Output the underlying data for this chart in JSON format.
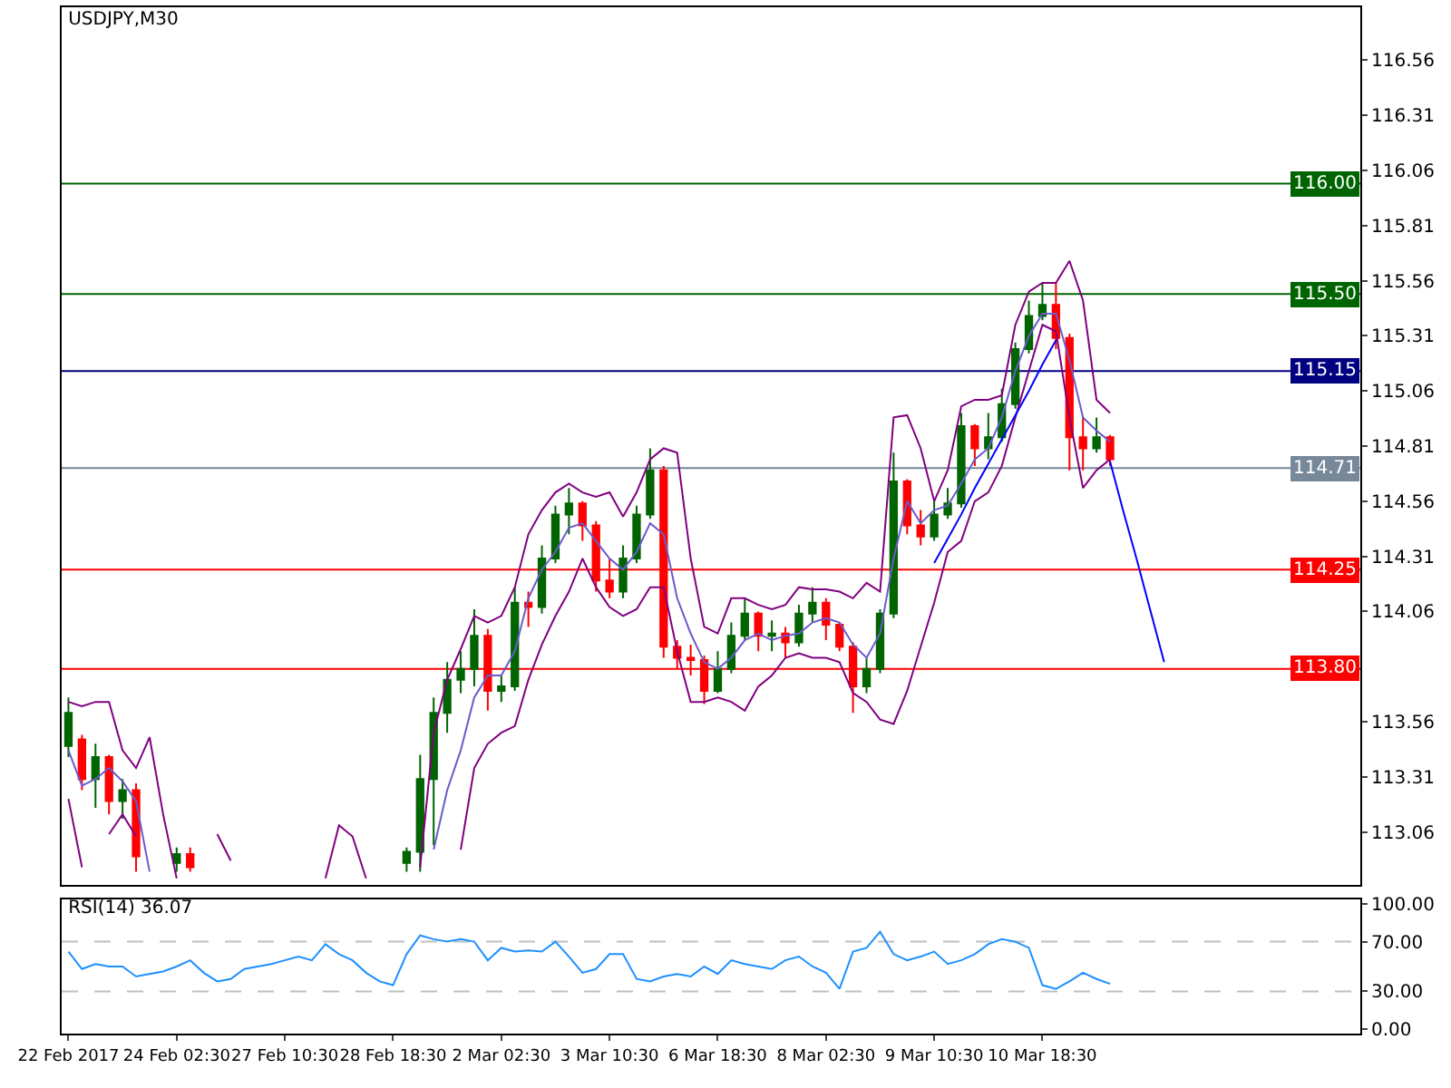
{
  "chart_data": [
    {
      "type": "candlestick",
      "title": "USDJPY,M30",
      "categories": [
        null,
        null,
        null,
        null,
        null,
        null,
        null,
        null,
        null,
        null,
        null,
        null,
        null,
        null,
        null,
        null,
        null,
        null,
        null,
        null,
        null,
        null,
        null,
        null,
        null,
        null,
        null,
        null,
        null,
        null,
        null,
        null,
        null,
        null,
        null,
        null,
        null,
        null,
        null,
        null,
        null,
        null,
        null,
        null,
        null,
        null,
        null,
        null,
        null,
        null,
        null,
        null,
        null,
        null,
        null,
        null,
        null,
        null,
        null,
        null,
        null,
        null,
        null,
        null,
        null,
        null,
        null,
        null,
        null,
        null,
        null,
        null,
        null,
        null,
        null,
        null,
        null,
        null,
        null,
        null,
        null,
        null,
        null,
        null,
        null,
        null,
        null,
        null,
        null,
        null,
        null,
        null,
        null,
        null,
        null,
        null
      ],
      "ohlc": [
        [
          113.45,
          113.67,
          113.4,
          113.6
        ],
        [
          113.48,
          113.5,
          113.25,
          113.3
        ],
        [
          113.3,
          113.46,
          113.17,
          113.4
        ],
        [
          113.4,
          113.41,
          113.14,
          113.2
        ],
        [
          113.2,
          113.3,
          113.12,
          113.25
        ],
        [
          113.25,
          113.28,
          112.88,
          112.95
        ],
        null,
        null,
        [
          112.92,
          112.99,
          112.88,
          112.96
        ],
        [
          112.96,
          112.99,
          112.88,
          112.9
        ],
        null,
        null,
        null,
        null,
        null,
        null,
        null,
        null,
        null,
        null,
        null,
        null,
        null,
        null,
        null,
        [
          112.92,
          112.99,
          112.88,
          112.97
        ],
        [
          112.97,
          113.41,
          112.88,
          113.3
        ],
        [
          113.3,
          113.67,
          113.0,
          113.6
        ],
        [
          113.6,
          113.83,
          113.51,
          113.75
        ],
        [
          113.75,
          113.88,
          113.69,
          113.8
        ],
        [
          113.8,
          114.07,
          113.72,
          113.95
        ],
        [
          113.95,
          113.98,
          113.61,
          113.7
        ],
        [
          113.7,
          113.77,
          113.65,
          113.72
        ],
        [
          113.72,
          114.17,
          113.7,
          114.1
        ],
        [
          114.1,
          114.15,
          113.99,
          114.08
        ],
        [
          114.08,
          114.36,
          114.05,
          114.3
        ],
        [
          114.3,
          114.54,
          114.28,
          114.5
        ],
        [
          114.5,
          114.62,
          114.41,
          114.55
        ],
        [
          114.55,
          114.56,
          114.38,
          114.45
        ],
        [
          114.45,
          114.47,
          114.15,
          114.2
        ],
        [
          114.2,
          114.3,
          114.12,
          114.15
        ],
        [
          114.15,
          114.36,
          114.12,
          114.3
        ],
        [
          114.3,
          114.54,
          114.28,
          114.5
        ],
        [
          114.5,
          114.8,
          114.48,
          114.7
        ],
        [
          114.7,
          114.72,
          113.85,
          113.9
        ],
        [
          113.9,
          113.93,
          113.8,
          113.85
        ],
        [
          113.85,
          113.91,
          113.77,
          113.84
        ],
        [
          113.84,
          113.86,
          113.64,
          113.7
        ],
        [
          113.7,
          113.88,
          113.69,
          113.8
        ],
        [
          113.8,
          114.01,
          113.78,
          113.95
        ],
        [
          113.95,
          114.12,
          113.93,
          114.05
        ],
        [
          114.05,
          114.06,
          113.88,
          113.95
        ],
        [
          113.95,
          114.02,
          113.88,
          113.96
        ],
        [
          113.96,
          113.99,
          113.85,
          113.92
        ],
        [
          113.92,
          114.09,
          113.9,
          114.05
        ],
        [
          114.05,
          114.17,
          114.01,
          114.1
        ],
        [
          114.1,
          114.12,
          113.93,
          114.0
        ],
        [
          114.0,
          114.01,
          113.88,
          113.9
        ],
        [
          113.9,
          113.92,
          113.6,
          113.72
        ],
        [
          113.72,
          113.85,
          113.69,
          113.8
        ],
        [
          113.8,
          114.07,
          113.78,
          114.05
        ],
        [
          114.05,
          114.78,
          114.03,
          114.65
        ],
        [
          114.65,
          114.66,
          114.41,
          114.45
        ],
        [
          114.45,
          114.52,
          114.36,
          114.4
        ],
        [
          114.4,
          114.56,
          114.38,
          114.5
        ],
        [
          114.5,
          114.62,
          114.48,
          114.55
        ],
        [
          114.55,
          114.96,
          114.53,
          114.9
        ],
        [
          114.9,
          114.91,
          114.72,
          114.8
        ],
        [
          114.8,
          114.96,
          114.75,
          114.85
        ],
        [
          114.85,
          115.07,
          114.83,
          115.0
        ],
        [
          115.0,
          115.28,
          114.98,
          115.25
        ],
        [
          115.25,
          115.47,
          115.23,
          115.4
        ],
        [
          115.4,
          115.55,
          115.38,
          115.45
        ],
        [
          115.45,
          115.55,
          115.25,
          115.3
        ],
        [
          115.3,
          115.32,
          114.7,
          114.85
        ],
        [
          114.85,
          114.94,
          114.7,
          114.8
        ],
        [
          114.8,
          114.94,
          114.78,
          114.85
        ],
        [
          114.85,
          114.86,
          114.72,
          114.75
        ],
        null,
        null,
        null,
        null,
        null,
        null,
        null,
        null,
        null,
        null,
        null,
        null,
        null,
        null,
        null,
        null,
        null,
        null
      ],
      "colors": [
        "#006400",
        "#ff0000",
        "#006400",
        "#ff0000",
        "#006400",
        "#ff0000",
        null,
        null,
        "#006400",
        "#ff0000",
        null,
        null,
        null,
        null,
        null,
        null,
        null,
        null,
        null,
        null,
        null,
        null,
        null,
        null,
        null,
        "#006400",
        "#006400",
        "#006400",
        "#006400",
        "#006400",
        "#006400",
        "#ff0000",
        "#006400",
        "#006400",
        "#ff0000",
        "#006400",
        "#006400",
        "#006400",
        "#ff0000",
        "#ff0000",
        "#ff0000",
        "#006400",
        "#006400",
        "#006400",
        "#ff0000",
        "#ff0000",
        "#ff0000",
        "#ff0000",
        "#006400",
        "#006400",
        "#006400",
        "#ff0000",
        "#006400",
        "#ff0000",
        "#006400",
        "#006400",
        "#ff0000",
        "#ff0000",
        "#ff0000",
        "#006400",
        "#006400",
        "#006400",
        "#ff0000",
        "#ff0000",
        "#006400",
        "#006400",
        "#006400",
        "#ff0000",
        "#006400",
        "#006400",
        "#006400",
        "#006400",
        "#006400",
        "#ff0000",
        "#ff0000",
        "#ff0000",
        "#006400",
        "#ff0000",
        null,
        null,
        null,
        null,
        null,
        null,
        null,
        null,
        null,
        null,
        null,
        null,
        null,
        null,
        null,
        null,
        null,
        null
      ],
      "series": [
        {
          "type": "line",
          "color": "#800080",
          "values": [
            113.65,
            113.63,
            113.65,
            113.65,
            113.43,
            113.35,
            113.49,
            113.14,
            112.85,
            null,
            null,
            113.05,
            112.93,
            null,
            null,
            null,
            null,
            null,
            null,
            112.85,
            113.09,
            113.04,
            112.85,
            null,
            null,
            null,
            112.9,
            113.51,
            113.75,
            113.89,
            114.04,
            114.01,
            114.04,
            114.17,
            114.41,
            114.52,
            114.6,
            114.64,
            114.6,
            114.58,
            114.6,
            114.49,
            114.6,
            114.75,
            114.8,
            114.78,
            114.3,
            113.99,
            113.96,
            114.12,
            114.12,
            114.09,
            114.07,
            114.09,
            114.17,
            114.16,
            114.16,
            114.15,
            114.12,
            114.19,
            114.15,
            114.94,
            114.95,
            114.8,
            114.56,
            114.7,
            114.99,
            115.02,
            115.02,
            115.04,
            115.36,
            115.51,
            115.55,
            115.55,
            115.65,
            115.47,
            115.02,
            114.96,
            null,
            null,
            null,
            null,
            null,
            null,
            null,
            null,
            null,
            null,
            null,
            null,
            null,
            null,
            null,
            null,
            null,
            null
          ]
        },
        {
          "type": "line",
          "color": "#6a5acd",
          "values": [
            113.43,
            113.27,
            113.3,
            113.35,
            113.29,
            113.2,
            112.88,
            null,
            null,
            null,
            null,
            null,
            null,
            null,
            null,
            null,
            null,
            null,
            null,
            null,
            null,
            null,
            null,
            null,
            null,
            null,
            null,
            112.98,
            113.25,
            113.43,
            113.67,
            113.77,
            113.77,
            113.88,
            114.12,
            114.25,
            114.33,
            114.44,
            114.46,
            114.38,
            114.3,
            114.25,
            114.33,
            114.46,
            114.41,
            114.12,
            113.96,
            113.83,
            113.8,
            113.85,
            113.93,
            113.96,
            113.93,
            113.95,
            113.96,
            114.01,
            114.03,
            114.01,
            113.91,
            113.85,
            113.96,
            114.3,
            114.56,
            114.46,
            114.52,
            114.54,
            114.64,
            114.75,
            114.8,
            114.94,
            115.15,
            115.31,
            115.41,
            115.41,
            115.2,
            114.94,
            114.88,
            114.83,
            null,
            null,
            null,
            null,
            null,
            null,
            null,
            null,
            null,
            null,
            null,
            null,
            null,
            null,
            null,
            null,
            null,
            null
          ]
        },
        {
          "type": "line",
          "color": "#800080",
          "values": [
            113.21,
            112.9,
            null,
            113.05,
            113.14,
            113.04,
            null,
            null,
            null,
            null,
            null,
            null,
            null,
            null,
            null,
            null,
            null,
            null,
            null,
            null,
            null,
            null,
            null,
            null,
            null,
            null,
            null,
            null,
            null,
            112.98,
            113.35,
            113.46,
            113.51,
            113.54,
            113.75,
            113.91,
            114.04,
            114.15,
            114.3,
            114.17,
            114.08,
            114.04,
            114.07,
            114.17,
            114.17,
            113.88,
            113.65,
            113.65,
            113.67,
            113.65,
            113.61,
            113.72,
            113.77,
            113.85,
            113.87,
            113.85,
            113.85,
            113.83,
            113.69,
            113.65,
            113.57,
            113.55,
            113.7,
            113.9,
            114.1,
            114.33,
            114.38,
            114.56,
            114.6,
            114.72,
            114.94,
            115.15,
            115.36,
            115.33,
            114.94,
            114.62,
            114.7,
            114.75,
            null,
            null,
            null,
            null,
            null,
            null,
            null,
            null,
            null,
            null,
            null,
            null,
            null,
            null,
            null,
            null,
            null,
            null
          ]
        },
        {
          "type": "line",
          "color": "#0000ff",
          "values": [
            null,
            null,
            null,
            null,
            null,
            null,
            null,
            null,
            null,
            null,
            null,
            null,
            null,
            null,
            null,
            null,
            null,
            null,
            null,
            null,
            null,
            null,
            null,
            null,
            null,
            null,
            null,
            null,
            null,
            null,
            null,
            null,
            null,
            null,
            null,
            null,
            null,
            null,
            null,
            null,
            null,
            null,
            null,
            null,
            null,
            null,
            null,
            null,
            null,
            null,
            null,
            null,
            null,
            null,
            null,
            null,
            null,
            null,
            null,
            null,
            null,
            null,
            null,
            null,
            114.28,
            114.39,
            114.5,
            114.62,
            114.73,
            114.84,
            114.95,
            115.06,
            115.18,
            115.29,
            null,
            null,
            null,
            null,
            null,
            null,
            null,
            null,
            null,
            null,
            null,
            null,
            null,
            null,
            null,
            null,
            null,
            null,
            null,
            null,
            null,
            null
          ]
        },
        {
          "type": "line",
          "color": "#0000ff",
          "values": [
            null,
            null,
            null,
            null,
            null,
            null,
            null,
            null,
            null,
            null,
            null,
            null,
            null,
            null,
            null,
            null,
            null,
            null,
            null,
            null,
            null,
            null,
            null,
            null,
            null,
            null,
            null,
            null,
            null,
            null,
            null,
            null,
            null,
            null,
            null,
            null,
            null,
            null,
            null,
            null,
            null,
            null,
            null,
            null,
            null,
            null,
            null,
            null,
            null,
            null,
            null,
            null,
            null,
            null,
            null,
            null,
            null,
            null,
            null,
            null,
            null,
            null,
            null,
            null,
            null,
            null,
            null,
            null,
            null,
            null,
            null,
            null,
            null,
            null,
            null,
            null,
            null,
            114.74,
            114.51,
            114.29,
            114.06,
            113.83,
            null,
            null,
            null,
            null,
            null,
            null,
            null,
            null,
            null,
            null,
            null,
            null,
            null,
            null
          ]
        }
      ],
      "ref_lines": [
        {
          "axis": "y",
          "value": 116.0,
          "label": "116.00",
          "color": "#006400"
        },
        {
          "axis": "y",
          "value": 115.5,
          "label": "115.50",
          "color": "#006400"
        },
        {
          "axis": "y",
          "value": 115.15,
          "label": "115.15",
          "color": "#000080"
        },
        {
          "axis": "y",
          "value": 114.71,
          "label": "114.71",
          "color": "#778899"
        },
        {
          "axis": "y",
          "value": 114.25,
          "label": "114.25",
          "color": "#ff0000"
        },
        {
          "axis": "y",
          "value": 113.8,
          "label": "113.80",
          "color": "#ff0000"
        }
      ],
      "ylim": [
        112.82,
        116.8
      ],
      "yticks": [
        113.06,
        113.31,
        113.56,
        114.06,
        114.31,
        114.56,
        114.81,
        115.06,
        115.31,
        115.56,
        115.81,
        116.06,
        116.31,
        116.56
      ],
      "tick_labels": "y"
    },
    {
      "type": "line",
      "title": "RSI(14) 36.07",
      "color": "#1e90ff",
      "categories": [
        "22 Feb 2017",
        null,
        null,
        null,
        null,
        null,
        null,
        null,
        "24 Feb 02:30",
        null,
        null,
        null,
        null,
        null,
        null,
        null,
        "27 Feb 10:30",
        null,
        null,
        null,
        null,
        null,
        null,
        null,
        "28 Feb 18:30",
        null,
        null,
        null,
        null,
        null,
        null,
        null,
        "2 Mar 02:30",
        null,
        null,
        null,
        null,
        null,
        null,
        null,
        "3 Mar 10:30",
        null,
        null,
        null,
        null,
        null,
        null,
        null,
        "6 Mar 18:30",
        null,
        null,
        null,
        null,
        null,
        null,
        null,
        "8 Mar 02:30",
        null,
        null,
        null,
        null,
        null,
        null,
        null,
        "9 Mar 10:30",
        null,
        null,
        null,
        null,
        null,
        null,
        null,
        "10 Mar 18:30",
        null,
        null,
        null,
        null,
        null,
        null,
        null,
        null,
        null,
        null,
        null,
        null,
        null,
        null,
        null,
        null,
        null,
        null,
        null,
        null,
        null,
        null,
        null
      ],
      "values": [
        62,
        48,
        52,
        50,
        50,
        42,
        44,
        46,
        50,
        55,
        45,
        38,
        40,
        48,
        50,
        52,
        55,
        58,
        55,
        68,
        60,
        55,
        45,
        38,
        35,
        60,
        75,
        72,
        70,
        72,
        70,
        55,
        65,
        62,
        63,
        62,
        70,
        58,
        45,
        48,
        60,
        60,
        40,
        38,
        42,
        44,
        42,
        50,
        44,
        55,
        52,
        50,
        48,
        55,
        58,
        50,
        45,
        32,
        62,
        65,
        78,
        60,
        55,
        58,
        62,
        52,
        55,
        60,
        68,
        72,
        70,
        65,
        35,
        32,
        38,
        45,
        40,
        36.07,
        null,
        null,
        null,
        null,
        null,
        null,
        null,
        null,
        null,
        null,
        null,
        null,
        null,
        null,
        null,
        null,
        null,
        null
      ],
      "ref_lines": [
        {
          "axis": "y",
          "value": 70,
          "label": null,
          "color": "#c0c0c0",
          "line_style": "dashed"
        },
        {
          "axis": "y",
          "value": 30,
          "label": null,
          "color": "#c0c0c0",
          "line_style": "dashed"
        }
      ],
      "ylim": [
        -4,
        104
      ],
      "yticks": [
        {
          "value": 0,
          "label": "0.00"
        },
        {
          "value": 30,
          "label": "30.00"
        },
        {
          "value": 70,
          "label": "70.00"
        },
        {
          "value": 100,
          "label": "100.00"
        }
      ]
    }
  ]
}
